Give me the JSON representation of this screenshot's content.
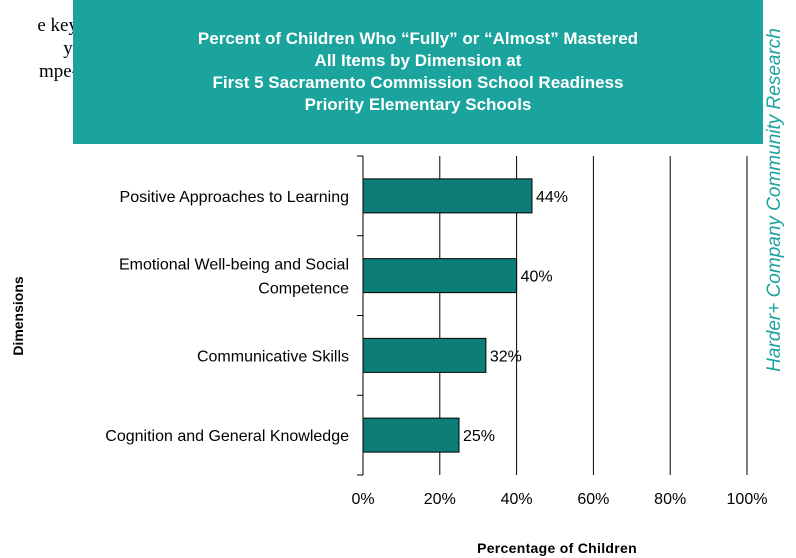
{
  "side_text": [
    "e key",
    "y:",
    "mpe-"
  ],
  "watermark": "Harder+ Company Community Research",
  "chart_data": {
    "type": "bar",
    "orientation": "horizontal",
    "title_lines": [
      "Percent of Children Who “Fully” or “Almost” Mastered",
      "All Items by Dimension at",
      "First 5 Sacramento Commission School Readiness",
      "Priority Elementary Schools"
    ],
    "categories": [
      [
        "Positive Approaches to Learning"
      ],
      [
        "Emotional Well-being and Social",
        "Competence"
      ],
      [
        "Communicative Skills"
      ],
      [
        "Cognition and General Knowledge"
      ]
    ],
    "values": [
      44,
      40,
      32,
      25
    ],
    "data_labels": [
      "44%",
      "40%",
      "32%",
      "25%"
    ],
    "xlim": [
      0,
      100
    ],
    "x_ticks": [
      0,
      20,
      40,
      60,
      80,
      100
    ],
    "x_tick_labels": [
      "0%",
      "20%",
      "40%",
      "60%",
      "80%",
      "100%"
    ],
    "xlabel": "Percentage of Children",
    "ylabel": "Dimensions",
    "grid": "vertical",
    "bar_color": "#0d7d77",
    "title_background": "#1ba39e"
  }
}
